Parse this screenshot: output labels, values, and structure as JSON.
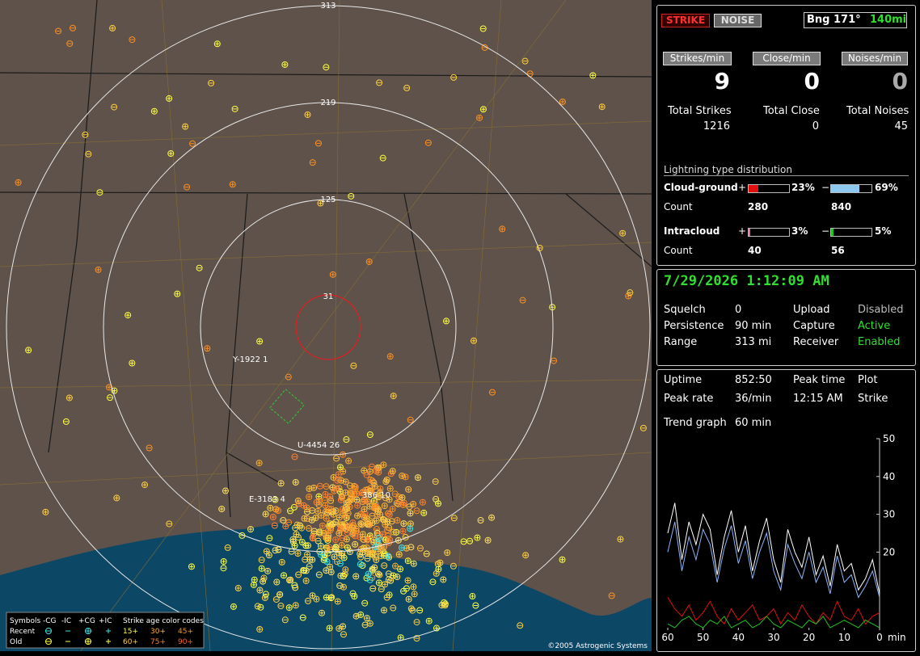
{
  "map": {
    "ring_labels": [
      "313",
      "219",
      "125",
      "31"
    ],
    "storm_labels": [
      "Y-1922 1",
      "U-4454 26",
      "E-3183 4",
      "386 10"
    ],
    "legend": {
      "symbols": "Symbols",
      "neg_cg": "-CG",
      "neg_ic": "-IC",
      "pos_cg": "+CG",
      "pos_ic": "+IC",
      "age_title": "Strike age color codes",
      "recent": "Recent",
      "old": "Old",
      "ages": [
        "15+",
        "30+",
        "45+",
        "60+",
        "75+",
        "90+"
      ]
    },
    "copyright": "©2005 Astrogenic Systems"
  },
  "header": {
    "strike": "STRIKE",
    "noise": "NOISE",
    "bearing": "Bng 171°",
    "distance": "140mi"
  },
  "rates": [
    {
      "label": "Strikes/min",
      "value": 9
    },
    {
      "label": "Close/min",
      "value": 0
    },
    {
      "label": "Noises/min",
      "value": 0
    }
  ],
  "totals": [
    {
      "label": "Total Strikes",
      "value": 1216
    },
    {
      "label": "Total Close",
      "value": 0
    },
    {
      "label": "Total Noises",
      "value": 45
    }
  ],
  "distribution": {
    "title": "Lightning type distribution",
    "plus": "+",
    "minus": "−",
    "count_label": "Count",
    "rows": [
      {
        "name": "Cloud-ground",
        "pos": 23,
        "pos_label": "23%",
        "neg": 69,
        "neg_label": "69%",
        "pos_count": 280,
        "neg_count": 840
      },
      {
        "name": "Intracloud",
        "pos": 3,
        "pos_label": "3%",
        "neg": 5,
        "neg_label": "5%",
        "pos_count": 40,
        "neg_count": 56
      }
    ]
  },
  "datetime": "7/29/2026 1:12:09 AM",
  "settings": [
    [
      "Squelch",
      "0",
      "Upload",
      "Disabled"
    ],
    [
      "Persistence",
      "90 min",
      "Capture",
      "Active"
    ],
    [
      "Range",
      "313 mi",
      "Receiver",
      "Enabled"
    ]
  ],
  "stats": [
    [
      "Uptime",
      "852:50",
      "Peak time",
      "Plot"
    ],
    [
      "Peak rate",
      "36/min",
      "12:15 AM",
      "Strike"
    ],
    [
      "Trend graph",
      "60 min"
    ]
  ],
  "chart_data": {
    "type": "line",
    "x": [
      60,
      58,
      56,
      54,
      52,
      50,
      48,
      46,
      44,
      42,
      40,
      38,
      36,
      34,
      32,
      30,
      28,
      26,
      24,
      22,
      20,
      18,
      16,
      14,
      12,
      10,
      8,
      6,
      4,
      2,
      0
    ],
    "xlim": [
      60,
      0
    ],
    "xticks": [
      60,
      50,
      40,
      30,
      20,
      10,
      0
    ],
    "x_unit": "min",
    "ylim": [
      0,
      50
    ],
    "yticks": [
      20,
      30,
      40,
      50
    ],
    "series": [
      {
        "color": "#ffffff",
        "values": [
          25,
          33,
          18,
          28,
          22,
          30,
          26,
          14,
          24,
          31,
          20,
          27,
          15,
          23,
          29,
          18,
          12,
          26,
          20,
          16,
          24,
          14,
          19,
          11,
          22,
          15,
          17,
          10,
          13,
          18,
          9
        ]
      },
      {
        "color": "#8ab4f8",
        "values": [
          20,
          28,
          15,
          24,
          18,
          26,
          22,
          12,
          21,
          27,
          17,
          23,
          13,
          20,
          25,
          15,
          10,
          22,
          17,
          13,
          20,
          12,
          16,
          9,
          19,
          12,
          14,
          8,
          11,
          15,
          8
        ]
      },
      {
        "color": "#e01010",
        "values": [
          8,
          5,
          3,
          6,
          2,
          4,
          7,
          3,
          1,
          5,
          2,
          4,
          6,
          2,
          3,
          5,
          1,
          4,
          2,
          6,
          3,
          1,
          4,
          2,
          7,
          3,
          2,
          5,
          1,
          3,
          4
        ]
      },
      {
        "color": "#20c020",
        "values": [
          1,
          0,
          2,
          3,
          1,
          0,
          2,
          1,
          3,
          0,
          1,
          2,
          0,
          1,
          3,
          1,
          0,
          2,
          1,
          0,
          2,
          1,
          3,
          0,
          1,
          2,
          1,
          0,
          2,
          1,
          0
        ]
      }
    ]
  }
}
